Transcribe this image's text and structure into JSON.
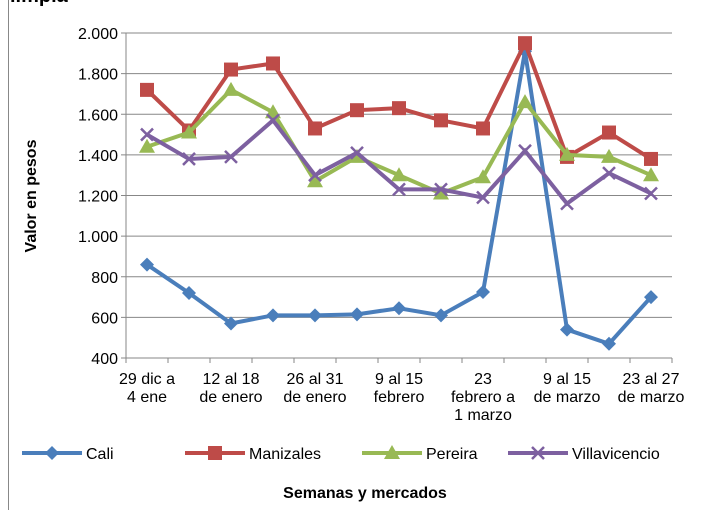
{
  "chart_data": {
    "type": "line",
    "title": "limpia",
    "categories": [
      "29 dic a\n4 ene",
      null,
      "12 al 18\nde enero",
      null,
      "26 al 31\nde enero",
      null,
      "9 al 15\nfebrero",
      null,
      "23\nfebrero a\n1 marzo",
      null,
      "9 al 15\nde marzo",
      null,
      "23 al 27\nde marzo"
    ],
    "series": [
      {
        "name": "Cali",
        "color": "#4a7ebb",
        "marker": "diamond",
        "values": [
          860,
          720,
          570,
          610,
          610,
          615,
          645,
          610,
          725,
          1910,
          540,
          470,
          700
        ]
      },
      {
        "name": "Manizales",
        "color": "#be4b48",
        "marker": "square",
        "values": [
          1720,
          1520,
          1820,
          1850,
          1530,
          1620,
          1630,
          1570,
          1530,
          1950,
          1390,
          1510,
          1380
        ]
      },
      {
        "name": "Pereira",
        "color": "#98b954",
        "marker": "triangle",
        "values": [
          1440,
          1510,
          1720,
          1610,
          1270,
          1390,
          1300,
          1210,
          1290,
          1660,
          1400,
          1390,
          1300
        ]
      },
      {
        "name": "Villavicencio",
        "color": "#7d60a0",
        "marker": "x",
        "values": [
          1500,
          1380,
          1390,
          1570,
          1300,
          1410,
          1230,
          1230,
          1190,
          1420,
          1160,
          1310,
          1210
        ]
      }
    ],
    "ylim": [
      400,
      2000
    ],
    "yticks": [
      400,
      600,
      800,
      {
        "value": 1000,
        "label": "1.000"
      },
      {
        "value": 1200,
        "label": "1.200"
      },
      {
        "value": 1400,
        "label": "1.400"
      },
      {
        "value": 1600,
        "label": "1.600"
      },
      {
        "value": 1800,
        "label": "1.800"
      },
      {
        "value": 2000,
        "label": "2.000"
      }
    ],
    "ylabel": "Valor en pesos",
    "xlabel": "Semanas y mercados",
    "grid": true,
    "legend": "bottom"
  }
}
